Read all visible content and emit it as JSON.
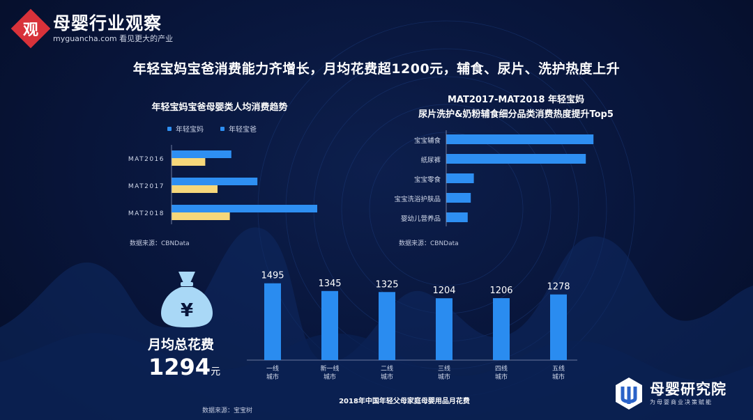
{
  "logo": {
    "mark": "观",
    "title": "母婴行业观察",
    "subtitle": "myguancha.com 看见更大的产业"
  },
  "main_title": "年轻宝妈宝爸消费能力齐增长，月均花费超1200元，辅食、尿片、洗护热度上升",
  "colors": {
    "mom": "#2e8ff2",
    "dad": "#f6d77a",
    "bar": "#2a8cf0",
    "logo_red": "#d8323a"
  },
  "chart_data": [
    {
      "type": "bar",
      "orientation": "horizontal",
      "title": "年轻宝妈宝爸母婴类人均消费趋势",
      "categories": [
        "MAT2016",
        "MAT2017",
        "MAT2018"
      ],
      "series": [
        {
          "name": "年轻宝妈",
          "values": [
            0.39,
            0.56,
            0.95
          ]
        },
        {
          "name": "年轻宝爸",
          "values": [
            0.22,
            0.3,
            0.38
          ]
        }
      ],
      "xlim": [
        0,
        1
      ],
      "legend": "top",
      "source": "数据来源：CBNData"
    },
    {
      "type": "bar",
      "orientation": "horizontal",
      "title_lines": [
        "MAT2017-MAT2018 年轻宝妈",
        "尿片洗护&奶粉辅食细分品类消费热度提升Top5"
      ],
      "categories": [
        "宝宝辅食",
        "纸尿裤",
        "宝宝零食",
        "宝宝洗浴护肤品",
        "婴幼儿营养品"
      ],
      "values": [
        0.96,
        0.91,
        0.18,
        0.16,
        0.14
      ],
      "xlim": [
        0,
        1
      ],
      "source": "数据来源：CBNData"
    },
    {
      "type": "bar",
      "title": "2018年中国年轻父母家庭母婴用品月花费",
      "categories": [
        [
          "一线",
          "城市"
        ],
        [
          "新一线",
          "城市"
        ],
        [
          "二线",
          "城市"
        ],
        [
          "三线",
          "城市"
        ],
        [
          "四线",
          "城市"
        ],
        [
          "五线",
          "城市"
        ]
      ],
      "values": [
        1495,
        1345,
        1325,
        1204,
        1206,
        1278
      ],
      "ylim": [
        0,
        1600
      ],
      "source": "数据来源：宝宝树"
    }
  ],
  "summary": {
    "label": "月均总花费",
    "value": "1294",
    "unit": "元",
    "icon": "money-bag-yen-icon",
    "yen": "¥"
  },
  "brand": {
    "name": "母婴研究院",
    "slogan": "为母婴商业决策赋能",
    "icon": "brand-logo-icon"
  }
}
